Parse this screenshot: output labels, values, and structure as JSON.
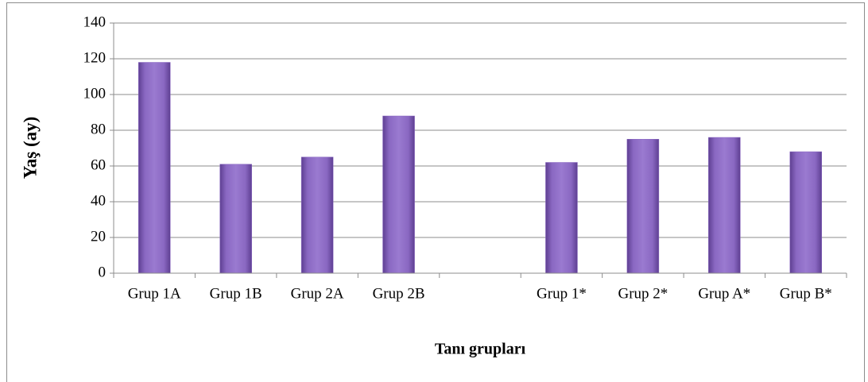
{
  "chart_data": {
    "type": "bar",
    "categories": [
      "Grup 1A",
      "Grup 1B",
      "Grup 2A",
      "Grup 2B",
      null,
      "Grup 1*",
      "Grup 2*",
      "Grup A*",
      "Grup B*"
    ],
    "values": [
      118,
      61,
      65,
      88,
      null,
      62,
      75,
      76,
      68
    ],
    "color": "#8a68c2",
    "ylim": [
      0,
      140
    ],
    "yticks": [
      0,
      20,
      40,
      60,
      80,
      100,
      120,
      140
    ],
    "grid": true,
    "y_label": "Yaş (ay)",
    "x_label": "Tanı grupları"
  }
}
